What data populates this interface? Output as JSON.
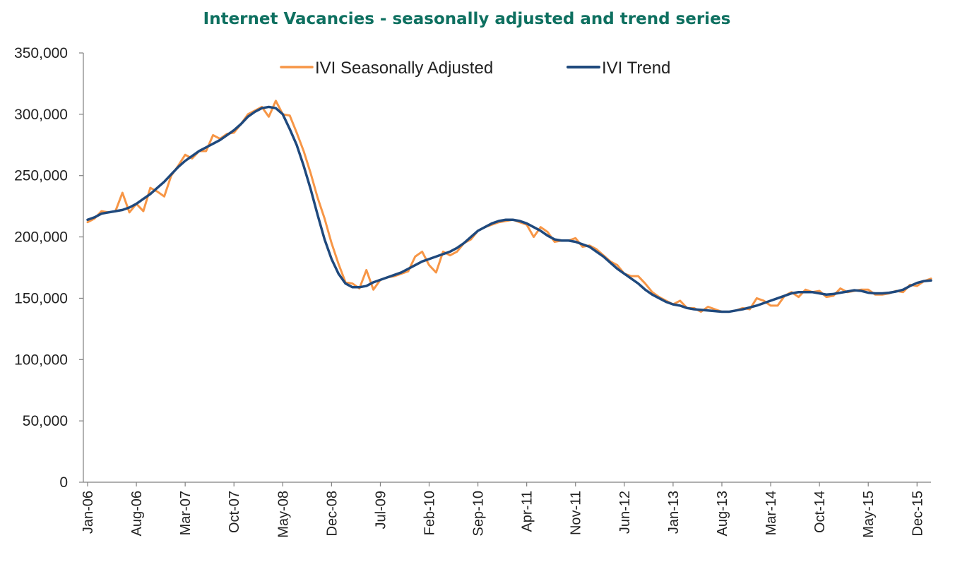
{
  "chart_data": {
    "type": "line",
    "title": "Internet Vacancies - seasonally adjusted and trend series",
    "xlabel": "",
    "ylabel": "",
    "ylim": [
      0,
      350000
    ],
    "yticks": [
      0,
      50000,
      100000,
      150000,
      200000,
      250000,
      300000,
      350000
    ],
    "ytick_labels": [
      "0",
      "50,000",
      "100,000",
      "150,000",
      "200,000",
      "250,000",
      "300,000",
      "350,000"
    ],
    "x_start": "Jan-06",
    "x_end": "Dec-15",
    "xtick_labels": [
      "Jan-06",
      "Aug-06",
      "Mar-07",
      "Oct-07",
      "May-08",
      "Dec-08",
      "Jul-09",
      "Feb-10",
      "Sep-10",
      "Apr-11",
      "Nov-11",
      "Jun-12",
      "Jan-13",
      "Aug-13",
      "Mar-14",
      "Oct-14",
      "May-15",
      "Dec-15"
    ],
    "grid": false,
    "legend_position": "top",
    "series": [
      {
        "name": "IVI Seasonally Adjusted",
        "color": "#f79646",
        "values": [
          212000,
          215000,
          221000,
          220000,
          221000,
          236000,
          220000,
          227000,
          221000,
          240000,
          237000,
          233000,
          250000,
          258000,
          267000,
          264000,
          270000,
          270000,
          283000,
          280000,
          284000,
          285000,
          292000,
          300000,
          303000,
          306000,
          298000,
          311000,
          300000,
          299000,
          285000,
          270000,
          252000,
          232000,
          215000,
          195000,
          178000,
          163000,
          162000,
          158000,
          173000,
          157000,
          165000,
          167000,
          168000,
          170000,
          172000,
          184000,
          188000,
          177000,
          171000,
          188000,
          185000,
          188000,
          195000,
          198000,
          205000,
          208000,
          210000,
          212000,
          213000,
          214000,
          212000,
          210000,
          200000,
          208000,
          204000,
          196000,
          197000,
          197000,
          199000,
          192000,
          193000,
          190000,
          185000,
          180000,
          177000,
          170000,
          168000,
          168000,
          162000,
          155000,
          151000,
          148000,
          145000,
          148000,
          142000,
          142000,
          139000,
          143000,
          141000,
          139000,
          139000,
          140000,
          142000,
          141000,
          150000,
          148000,
          144000,
          144000,
          152000,
          155000,
          151000,
          157000,
          155000,
          156000,
          151000,
          152000,
          158000,
          155000,
          156000,
          157000,
          157000,
          153000,
          153000,
          154000,
          156000,
          155000,
          161000,
          160000,
          164000,
          166000
        ]
      },
      {
        "name": "IVI Trend",
        "color": "#1f497d",
        "values": [
          214000,
          216000,
          219000,
          220000,
          221000,
          222000,
          224000,
          227000,
          231000,
          235000,
          240000,
          245000,
          251000,
          257000,
          262000,
          266000,
          270000,
          273000,
          276000,
          279000,
          283000,
          287000,
          292000,
          298000,
          302000,
          305000,
          306000,
          305000,
          300000,
          288000,
          275000,
          258000,
          239000,
          218000,
          198000,
          182000,
          170000,
          162000,
          159000,
          159000,
          160000,
          163000,
          165000,
          167000,
          169000,
          171000,
          174000,
          177000,
          180000,
          182000,
          184000,
          186000,
          188000,
          191000,
          195000,
          200000,
          205000,
          208000,
          211000,
          213000,
          214000,
          214000,
          213000,
          211000,
          208000,
          205000,
          201000,
          198000,
          197000,
          197000,
          196000,
          194000,
          192000,
          188000,
          184000,
          179000,
          174000,
          170000,
          166000,
          162000,
          157000,
          153000,
          150000,
          147000,
          145000,
          144000,
          142000,
          141000,
          140500,
          140000,
          139500,
          139000,
          139000,
          140000,
          141000,
          142500,
          144000,
          146000,
          148000,
          150000,
          152000,
          154000,
          155000,
          155000,
          155000,
          154000,
          153000,
          153500,
          154500,
          155500,
          156500,
          156000,
          154500,
          154000,
          154000,
          154500,
          155500,
          157000,
          160000,
          162500,
          164000,
          164500
        ]
      }
    ]
  }
}
